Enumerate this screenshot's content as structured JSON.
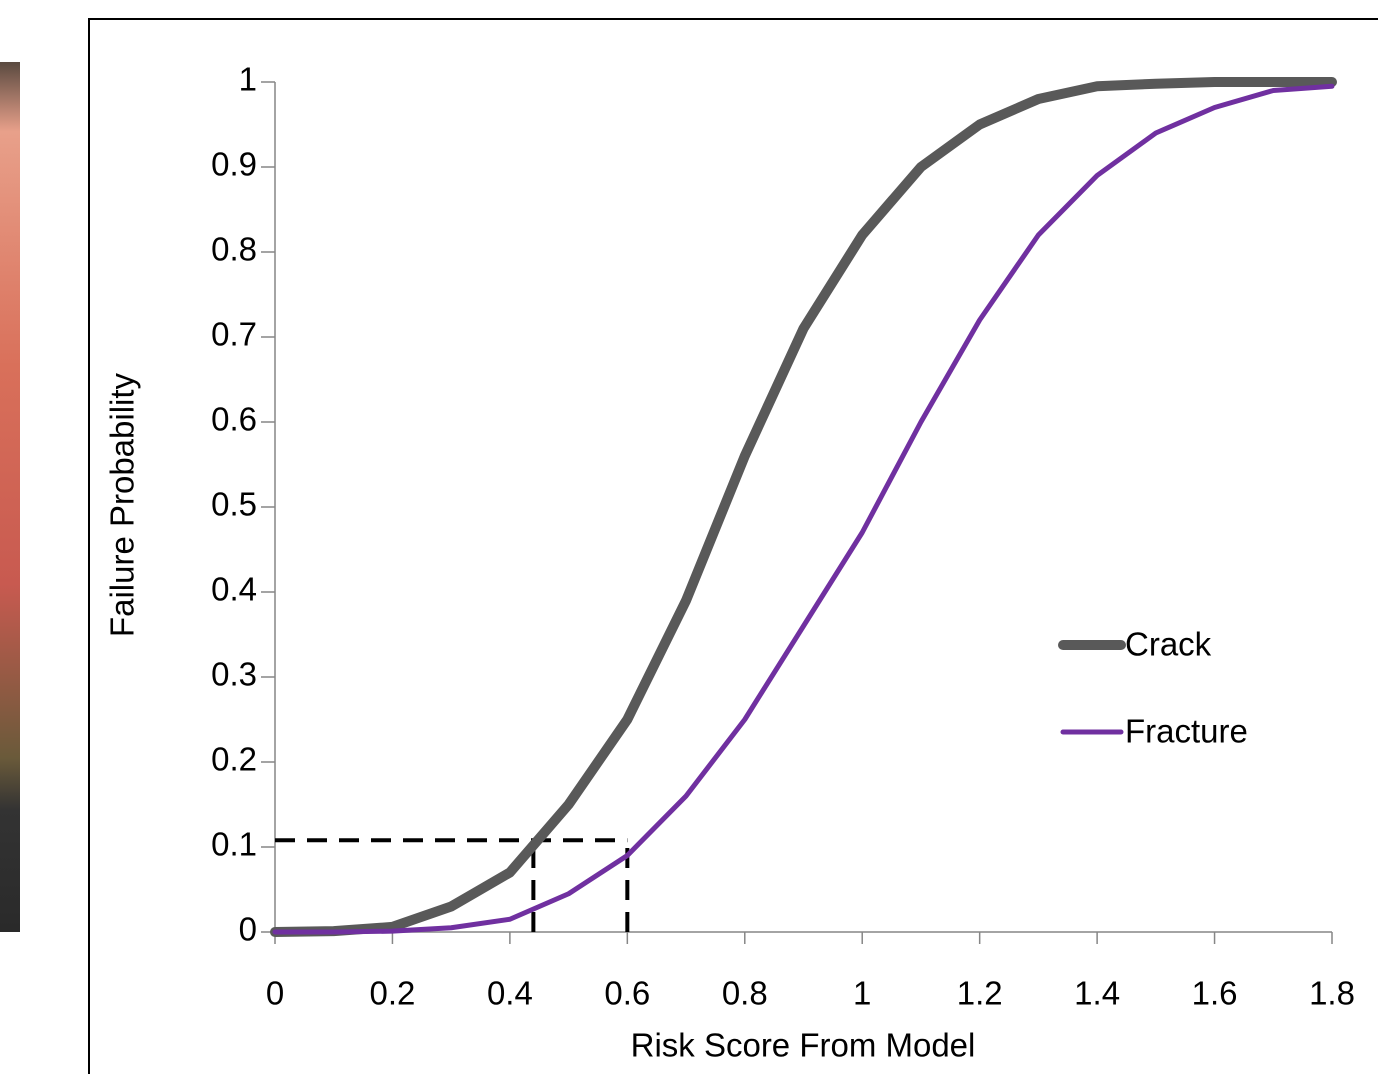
{
  "chart_data": {
    "type": "line",
    "x_label": "Risk Score From Model",
    "y_label": "Failure Probability",
    "x": [
      0,
      0.1,
      0.2,
      0.3,
      0.4,
      0.5,
      0.6,
      0.7,
      0.8,
      0.9,
      1,
      1.1,
      1.2,
      1.3,
      1.4,
      1.5,
      1.6,
      1.7,
      1.8
    ],
    "series": [
      {
        "name": "Crack",
        "color": "#595959",
        "line_width": 10,
        "values": [
          0,
          0.001,
          0.006,
          0.03,
          0.07,
          0.15,
          0.25,
          0.39,
          0.56,
          0.71,
          0.82,
          0.9,
          0.95,
          0.98,
          0.995,
          0.998,
          1,
          1,
          1
        ]
      },
      {
        "name": "Fracture",
        "color": "#7030a0",
        "line_width": 5,
        "values": [
          0,
          0,
          0.001,
          0.005,
          0.015,
          0.045,
          0.09,
          0.16,
          0.25,
          0.36,
          0.47,
          0.6,
          0.72,
          0.82,
          0.89,
          0.94,
          0.97,
          0.99,
          0.995
        ]
      }
    ],
    "guides": [
      {
        "x": [
          0,
          0.6
        ],
        "y": [
          0.108,
          0.108
        ]
      },
      {
        "x": [
          0.44,
          0.44
        ],
        "y": [
          0,
          0.108
        ]
      },
      {
        "x": [
          0.6,
          0.6
        ],
        "y": [
          0,
          0.108
        ]
      }
    ],
    "xlim": [
      0,
      1.8
    ],
    "xticks": [
      0,
      0.2,
      0.4,
      0.6,
      0.8,
      1,
      1.2,
      1.4,
      1.6,
      1.8
    ],
    "ylim": [
      0,
      1
    ],
    "yticks": [
      0,
      0.1,
      0.2,
      0.3,
      0.4,
      0.5,
      0.6,
      0.7,
      0.8,
      0.9,
      1
    ],
    "grid": false,
    "legend": "right"
  }
}
